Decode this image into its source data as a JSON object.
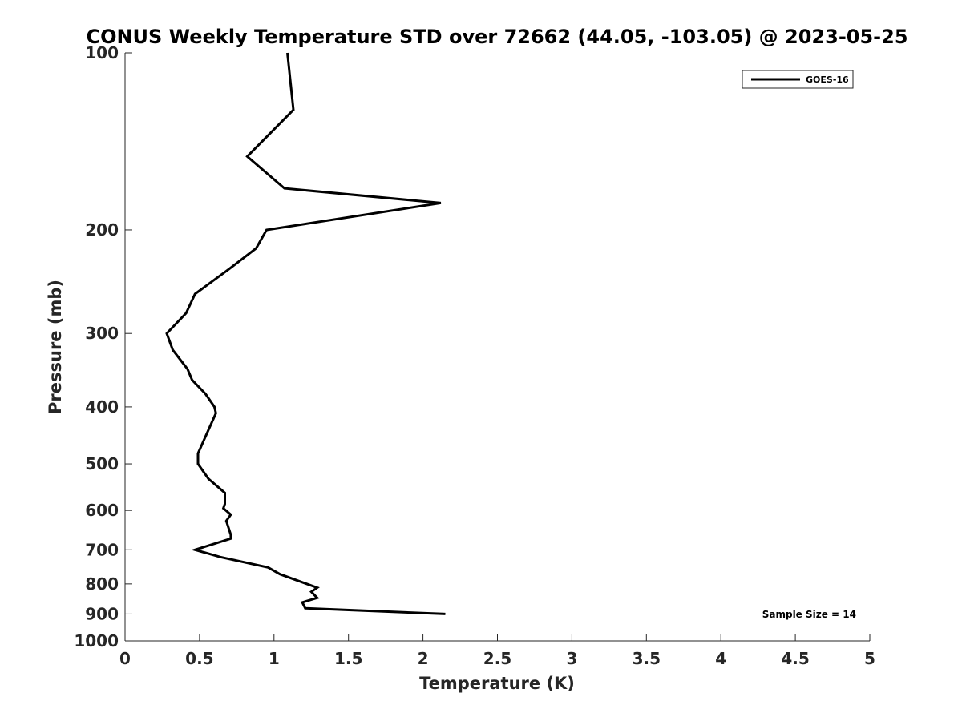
{
  "chart_data": {
    "type": "line",
    "title": "CONUS Weekly Temperature STD over 72662 (44.05, -103.05) @ 2023-05-25",
    "xlabel": "Temperature (K)",
    "ylabel": "Pressure (mb)",
    "xlim": [
      0,
      5
    ],
    "ylim": [
      100,
      1000
    ],
    "y_scale": "log",
    "y_reversed": true,
    "grid": false,
    "legend_placement": "top-right",
    "x_ticks": [
      0,
      0.5,
      1,
      1.5,
      2,
      2.5,
      3,
      3.5,
      4,
      4.5,
      5
    ],
    "x_tick_labels": [
      "0",
      "0.5",
      "1",
      "1.5",
      "2",
      "2.5",
      "3",
      "3.5",
      "4",
      "4.5",
      "5"
    ],
    "y_ticks": [
      100,
      200,
      300,
      400,
      500,
      600,
      700,
      800,
      900,
      1000
    ],
    "y_tick_labels": [
      "100",
      "200",
      "300",
      "400",
      "500",
      "600",
      "700",
      "800",
      "900",
      "1000"
    ],
    "series": [
      {
        "name": "GOES-16",
        "color": "#000000",
        "points": [
          [
            1.09,
            100
          ],
          [
            1.13,
            125
          ],
          [
            0.82,
            150
          ],
          [
            1.07,
            170
          ],
          [
            2.12,
            180
          ],
          [
            0.95,
            200
          ],
          [
            0.88,
            215
          ],
          [
            0.7,
            233
          ],
          [
            0.47,
            257
          ],
          [
            0.41,
            277
          ],
          [
            0.28,
            300
          ],
          [
            0.32,
            320
          ],
          [
            0.42,
            345
          ],
          [
            0.45,
            360
          ],
          [
            0.54,
            380
          ],
          [
            0.6,
            400
          ],
          [
            0.61,
            410
          ],
          [
            0.49,
            480
          ],
          [
            0.49,
            500
          ],
          [
            0.56,
            530
          ],
          [
            0.67,
            560
          ],
          [
            0.67,
            585
          ],
          [
            0.66,
            595
          ],
          [
            0.71,
            610
          ],
          [
            0.68,
            625
          ],
          [
            0.71,
            660
          ],
          [
            0.71,
            670
          ],
          [
            0.47,
            700
          ],
          [
            0.64,
            720
          ],
          [
            0.96,
            750
          ],
          [
            1.04,
            770
          ],
          [
            1.29,
            812
          ],
          [
            1.25,
            825
          ],
          [
            1.29,
            845
          ],
          [
            1.19,
            860
          ],
          [
            1.21,
            880
          ],
          [
            2.15,
            900
          ]
        ]
      }
    ],
    "annotation": "Sample Size = 14"
  }
}
